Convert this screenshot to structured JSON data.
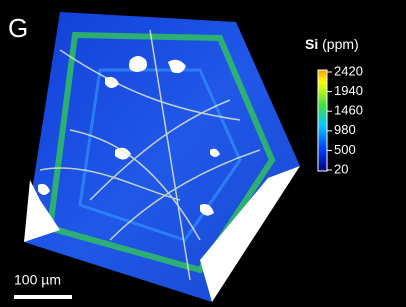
{
  "panel": {
    "label": "G"
  },
  "legend": {
    "element": "Si",
    "unit": "(ppm)",
    "ticks": [
      2420,
      1940,
      1460,
      980,
      500,
      20
    ]
  },
  "scale_bar": {
    "label": "100 µm"
  }
}
